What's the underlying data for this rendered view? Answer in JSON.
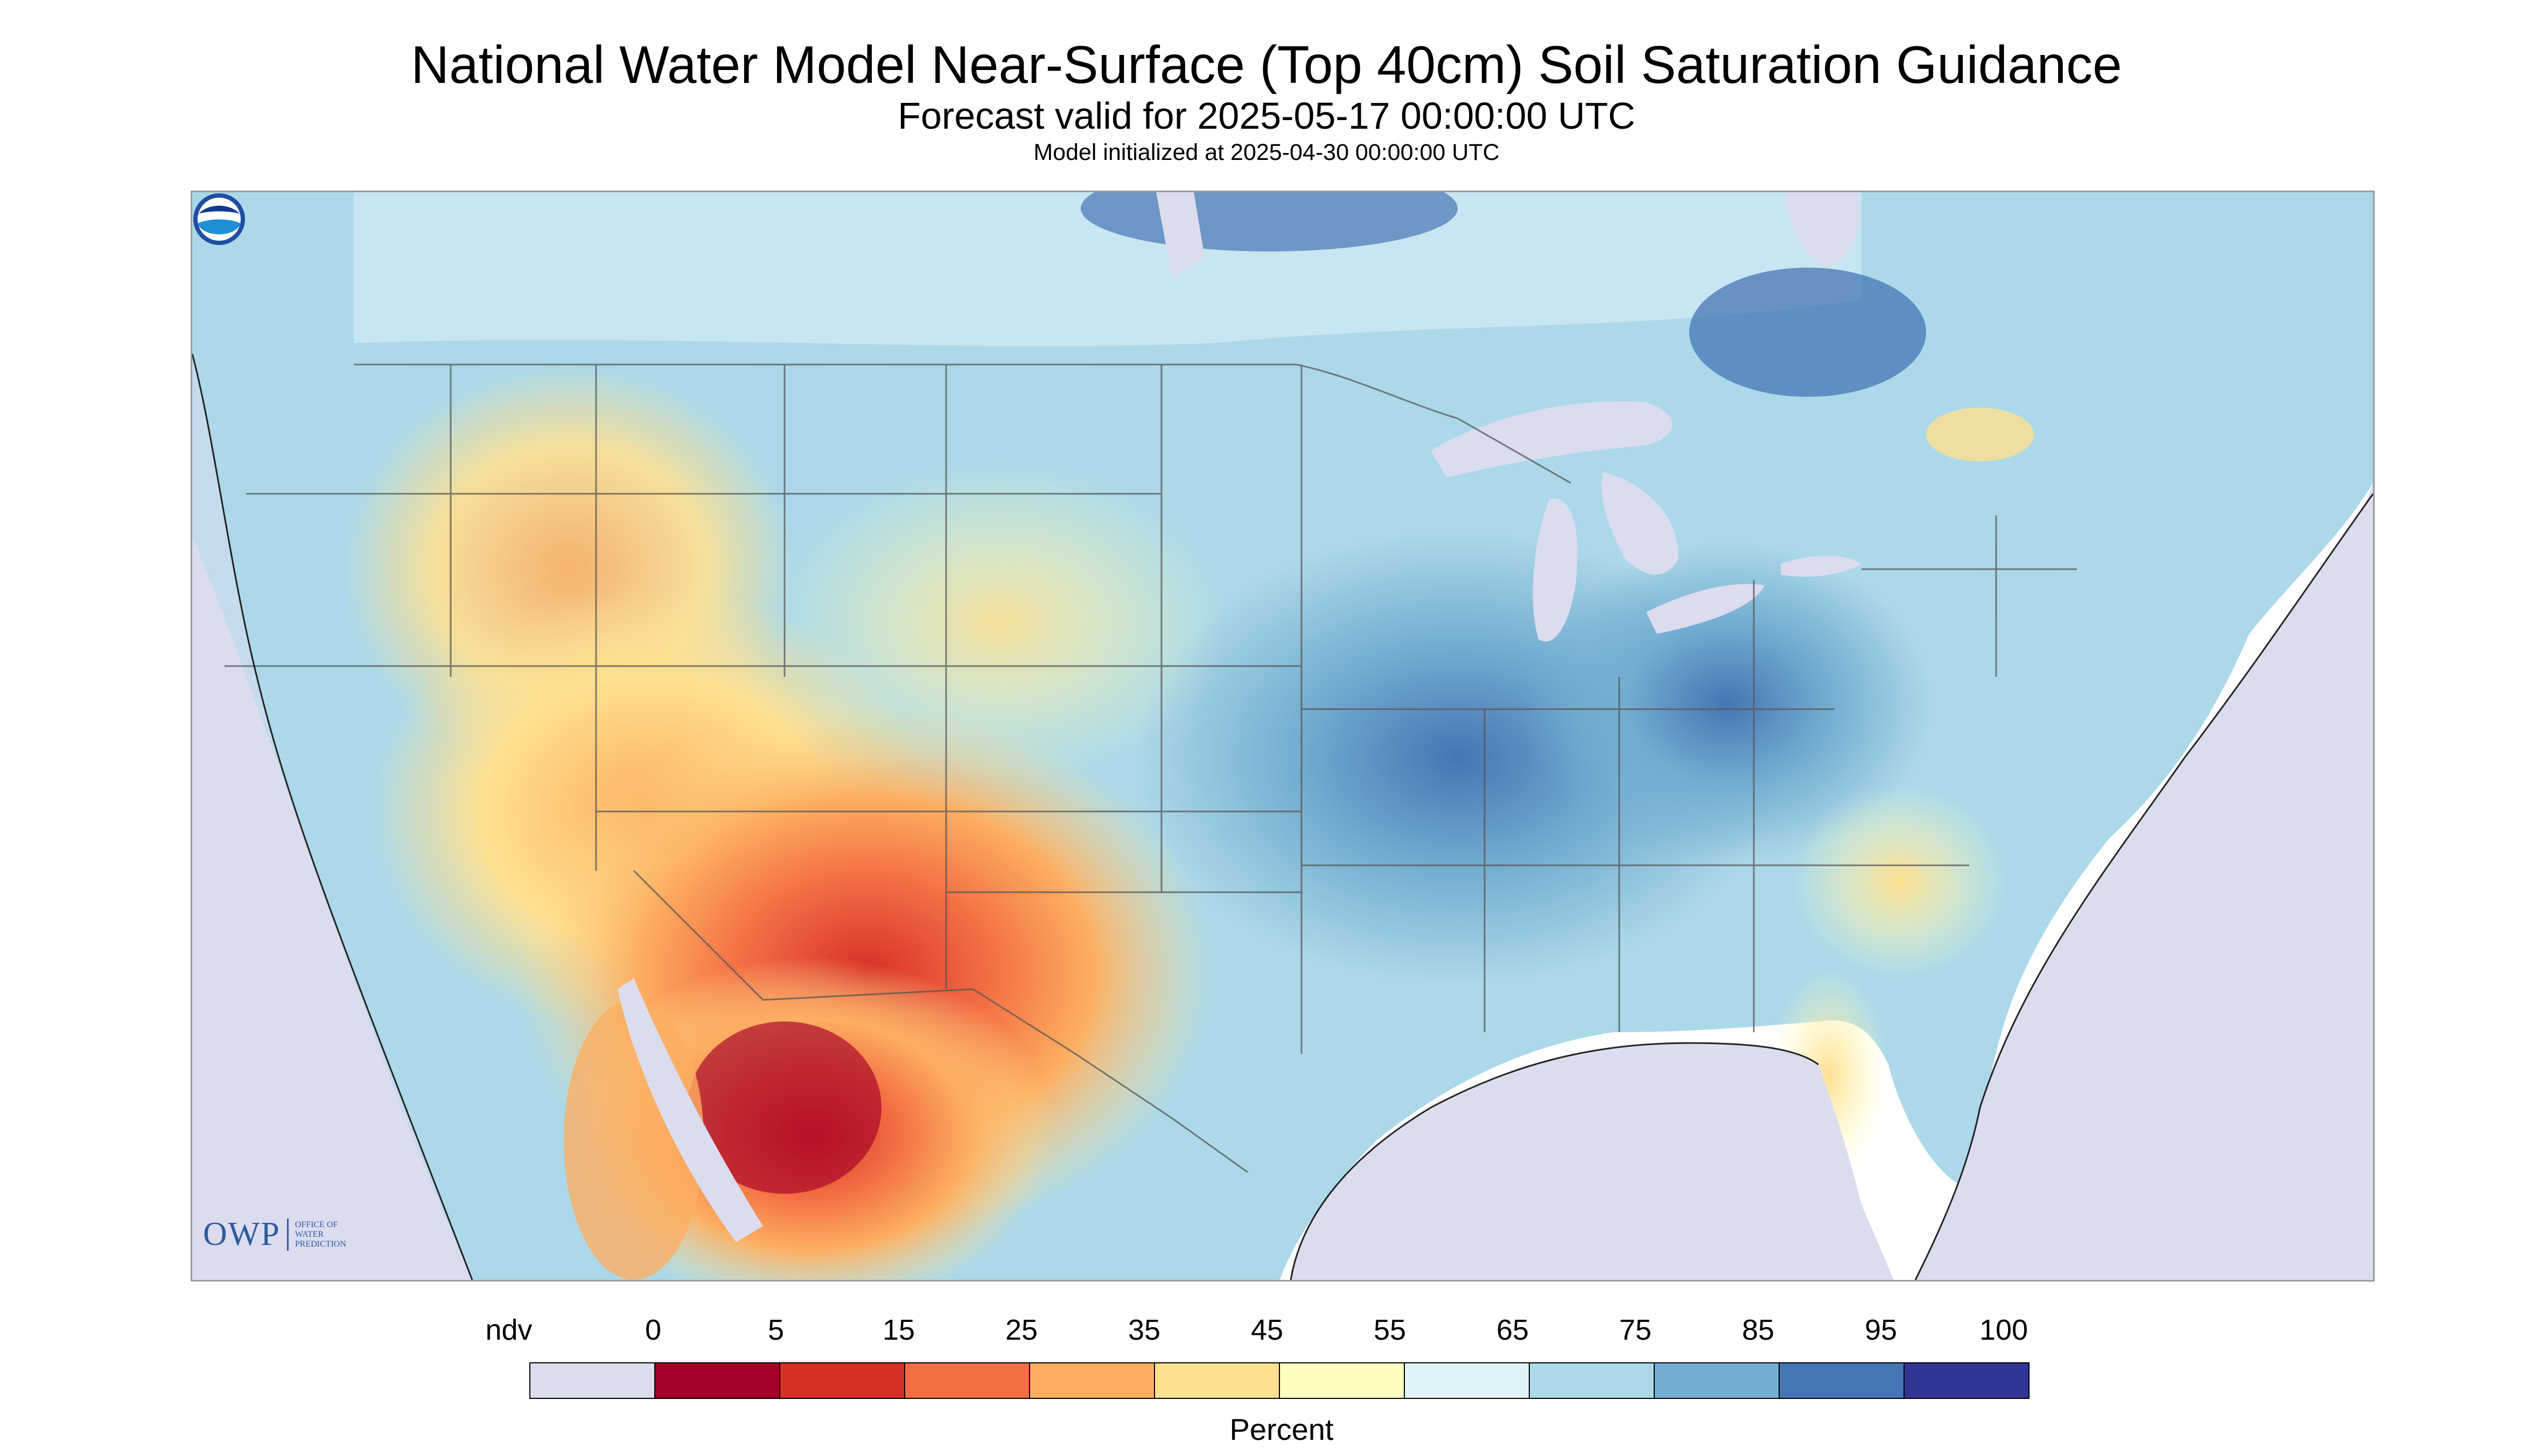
{
  "header": {
    "title": "National Water Model Near-Surface (Top 40cm) Soil Saturation Guidance",
    "subtitle": "Forecast valid for 2025-05-17 00:00:00 UTC",
    "init_line": "Model initialized at 2025-04-30 00:00:00 UTC"
  },
  "map": {
    "description_region": "Contiguous United States with parts of Canada and Mexico",
    "background_color": "#ffffff",
    "no_data_color": "#dcdcef"
  },
  "logos": {
    "owp_text": "OWP",
    "owp_subtext": [
      "Office of",
      "Water",
      "Prediction"
    ],
    "noaa_text": "NOAA"
  },
  "legend": {
    "labels": [
      "ndv",
      "0",
      "5",
      "15",
      "25",
      "35",
      "45",
      "55",
      "65",
      "75",
      "85",
      "95",
      "100"
    ],
    "colors": [
      "#dcdcef",
      "#a50026",
      "#d73027",
      "#f46d43",
      "#fdae61",
      "#fee090",
      "#ffffbf",
      "#e0f3f8",
      "#abd9e9",
      "#74add1",
      "#4575b4",
      "#313695"
    ],
    "unit": "Percent"
  },
  "chart_data": {
    "type": "heatmap",
    "title": "National Water Model Near-Surface (Top 40cm) Soil Saturation Guidance",
    "subtitle": "Forecast valid for 2025-05-17 00:00:00 UTC",
    "value_label": "Percent",
    "bins": [
      {
        "label": "ndv",
        "color": "#dcdcef"
      },
      {
        "range": [
          0,
          5
        ],
        "color": "#a50026"
      },
      {
        "range": [
          5,
          15
        ],
        "color": "#d73027"
      },
      {
        "range": [
          15,
          25
        ],
        "color": "#f46d43"
      },
      {
        "range": [
          25,
          35
        ],
        "color": "#fdae61"
      },
      {
        "range": [
          35,
          45
        ],
        "color": "#fee090"
      },
      {
        "range": [
          45,
          55
        ],
        "color": "#ffffbf"
      },
      {
        "range": [
          55,
          65
        ],
        "color": "#e0f3f8"
      },
      {
        "range": [
          65,
          75
        ],
        "color": "#abd9e9"
      },
      {
        "range": [
          75,
          85
        ],
        "color": "#74add1"
      },
      {
        "range": [
          85,
          95
        ],
        "color": "#4575b4"
      },
      {
        "range": [
          95,
          100
        ],
        "color": "#313695"
      }
    ]
  }
}
